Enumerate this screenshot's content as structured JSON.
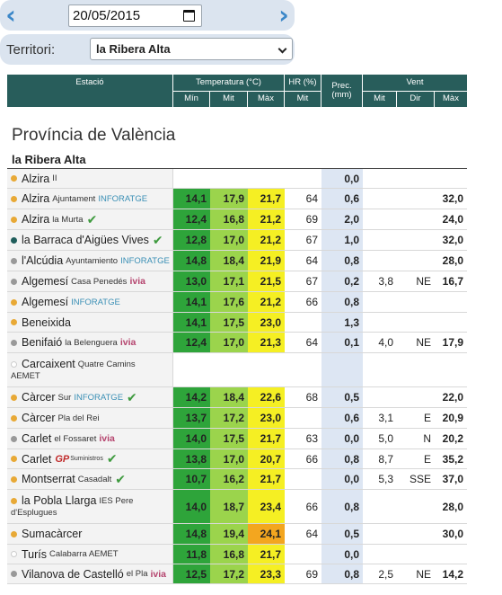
{
  "date_nav": {
    "prev_icon": "chevron-left-icon",
    "next_icon": "chevron-right-icon",
    "date_value": "20/05/2015"
  },
  "territory": {
    "label": "Territori:",
    "selected": "la Ribera Alta"
  },
  "table_header": {
    "station": "Estació",
    "temperature": "Temperatura (°C)",
    "humidity": "HR (%)",
    "precip": "Prec. (mm)",
    "wind": "Vent",
    "min": "Mín",
    "mit": "Mit",
    "max": "Màx",
    "hr_mit": "Mit",
    "wind_mit": "Mit",
    "wind_dir": "Dir",
    "wind_max": "Màx"
  },
  "section_title": "Província de València",
  "group_title": "la Ribera Alta",
  "colors": {
    "header_bg": "#285d5b",
    "dot_orange": "#e8a936",
    "dot_gray": "#999999",
    "dot_teal": "#1f5d5b",
    "min_green": "#2ea43a",
    "mit_lightgreen": "#9bd44c",
    "max_yellow": "#f5ef23",
    "max_orange": "#f3a61f",
    "prec_blue": "#dde6f3"
  },
  "rows": [
    {
      "name": "Alzira",
      "sub": "II",
      "tag": "",
      "check": false,
      "dot": "orange",
      "min": "",
      "mit": "",
      "max": "",
      "hr": "",
      "prec": "0,0",
      "vmit": "",
      "dir": "",
      "vmax": ""
    },
    {
      "name": "Alzira",
      "sub": "Ajuntament",
      "tag": "INFORATGE",
      "check": false,
      "dot": "orange",
      "min": "14,1",
      "mit": "17,9",
      "max": "21,7",
      "hr": "64",
      "prec": "0,6",
      "vmit": "",
      "dir": "",
      "vmax": "32,0"
    },
    {
      "name": "Alzira",
      "sub": "la Murta",
      "tag": "",
      "check": true,
      "dot": "orange",
      "min": "12,4",
      "mit": "16,8",
      "max": "21,2",
      "hr": "69",
      "prec": "2,0",
      "vmit": "",
      "dir": "",
      "vmax": "24,0"
    },
    {
      "name": "la Barraca d'Aigües Vives",
      "sub": "",
      "tag": "",
      "check": true,
      "dot": "teal",
      "min": "12,8",
      "mit": "17,0",
      "max": "21,2",
      "hr": "67",
      "prec": "1,0",
      "vmit": "",
      "dir": "",
      "vmax": "32,0"
    },
    {
      "name": "l'Alcúdia",
      "sub": "Ayuntamiento",
      "tag": "INFORATGE",
      "check": false,
      "dot": "gray",
      "min": "14,8",
      "mit": "18,4",
      "max": "21,9",
      "hr": "64",
      "prec": "0,8",
      "vmit": "",
      "dir": "",
      "vmax": "28,0"
    },
    {
      "name": "Algemesí",
      "sub": "Casa Penedés",
      "tag": "ivia",
      "check": false,
      "dot": "gray",
      "min": "13,0",
      "mit": "17,1",
      "max": "21,5",
      "hr": "67",
      "prec": "0,2",
      "vmit": "3,8",
      "dir": "NE",
      "vmax": "16,7"
    },
    {
      "name": "Algemesí",
      "sub": "",
      "tag": "INFORATGE",
      "check": false,
      "dot": "orange",
      "min": "14,1",
      "mit": "17,6",
      "max": "21,2",
      "hr": "66",
      "prec": "0,8",
      "vmit": "",
      "dir": "",
      "vmax": ""
    },
    {
      "name": "Beneixida",
      "sub": "",
      "tag": "",
      "check": false,
      "dot": "orange",
      "min": "14,1",
      "mit": "17,5",
      "max": "23,0",
      "hr": "",
      "prec": "1,3",
      "vmit": "",
      "dir": "",
      "vmax": ""
    },
    {
      "name": "Benifaió",
      "sub": "la Belenguera",
      "tag": "ivia",
      "check": false,
      "dot": "gray",
      "min": "12,4",
      "mit": "17,0",
      "max": "21,3",
      "hr": "64",
      "prec": "0,1",
      "vmit": "4,0",
      "dir": "NE",
      "vmax": "17,9"
    },
    {
      "name": "Carcaixent",
      "sub": "Quatre Camins",
      "sub2": "AEMET",
      "tag": "",
      "check": false,
      "dot": "none",
      "min": "",
      "mit": "",
      "max": "",
      "hr": "",
      "prec": "",
      "vmit": "",
      "dir": "",
      "vmax": ""
    },
    {
      "name": "Càrcer",
      "sub": "Sur",
      "tag": "INFORATGE",
      "check": true,
      "dot": "orange",
      "min": "14,2",
      "mit": "18,4",
      "max": "22,6",
      "hr": "68",
      "prec": "0,5",
      "vmit": "",
      "dir": "",
      "vmax": "22,0"
    },
    {
      "name": "Càrcer",
      "sub": "Pla del Rei",
      "tag": "",
      "check": false,
      "dot": "orange",
      "min": "13,7",
      "mit": "17,2",
      "max": "23,0",
      "hr": "",
      "prec": "0,6",
      "vmit": "3,1",
      "dir": "E",
      "vmax": "20,9"
    },
    {
      "name": "Carlet",
      "sub": "el Fossaret",
      "tag": "ivia",
      "check": false,
      "dot": "gray",
      "min": "14,0",
      "mit": "17,5",
      "max": "21,7",
      "hr": "63",
      "prec": "0,0",
      "vmit": "5,0",
      "dir": "N",
      "vmax": "20,2"
    },
    {
      "name": "Carlet",
      "sub": "",
      "tag": "GP",
      "tag_sub": "Suministros",
      "check": true,
      "dot": "orange",
      "min": "13,8",
      "mit": "17,0",
      "max": "20,7",
      "hr": "66",
      "prec": "0,8",
      "vmit": "8,7",
      "dir": "E",
      "vmax": "35,2"
    },
    {
      "name": "Montserrat",
      "sub": "Casadalt",
      "tag": "",
      "check": true,
      "dot": "orange",
      "min": "10,7",
      "mit": "16,2",
      "max": "21,7",
      "hr": "",
      "prec": "0,0",
      "vmit": "5,3",
      "dir": "SSE",
      "vmax": "37,0"
    },
    {
      "name": "la Pobla Llarga",
      "sub": "IES Pere",
      "sub2": "d'Esplugues",
      "tag": "",
      "check": false,
      "dot": "orange",
      "min": "14,0",
      "mit": "18,7",
      "max": "23,4",
      "hr": "66",
      "prec": "0,8",
      "vmit": "",
      "dir": "",
      "vmax": "28,0"
    },
    {
      "name": "Sumacàrcer",
      "sub": "",
      "tag": "",
      "check": false,
      "dot": "orange",
      "min": "14,8",
      "mit": "19,4",
      "max": "24,1",
      "hr": "64",
      "prec": "0,5",
      "vmit": "",
      "dir": "",
      "vmax": "30,0"
    },
    {
      "name": "Turís",
      "sub": "Calabarra AEMET",
      "tag": "",
      "check": false,
      "dot": "none",
      "min": "11,8",
      "mit": "16,8",
      "max": "21,7",
      "hr": "",
      "prec": "0,0",
      "vmit": "",
      "dir": "",
      "vmax": ""
    },
    {
      "name": "Vilanova de Castelló",
      "sub": "el Pla",
      "tag": "ivia",
      "check": false,
      "dot": "gray",
      "min": "12,5",
      "mit": "17,2",
      "max": "23,3",
      "hr": "69",
      "prec": "0,8",
      "vmit": "2,5",
      "dir": "NE",
      "vmax": "14,2"
    }
  ]
}
